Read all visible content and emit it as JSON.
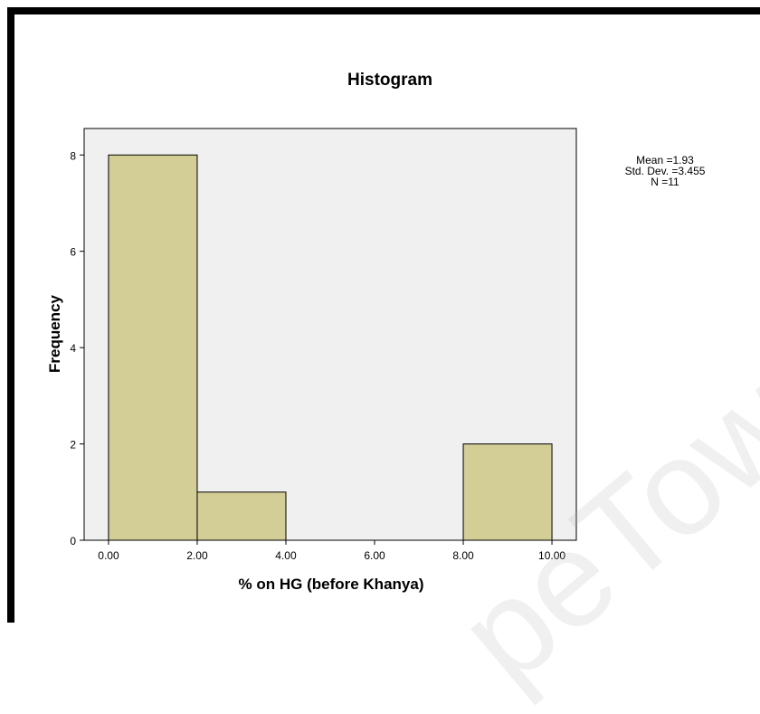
{
  "chart_data": {
    "type": "bar",
    "title": "Histogram",
    "xlabel": "% on HG (before Khanya)",
    "ylabel": "Frequency",
    "bins": [
      {
        "start": 0.0,
        "end": 2.0,
        "count": 8
      },
      {
        "start": 2.0,
        "end": 4.0,
        "count": 1
      },
      {
        "start": 4.0,
        "end": 6.0,
        "count": 0
      },
      {
        "start": 6.0,
        "end": 8.0,
        "count": 0
      },
      {
        "start": 8.0,
        "end": 10.0,
        "count": 2
      }
    ],
    "xticks": [
      "0.00",
      "2.00",
      "4.00",
      "6.00",
      "8.00",
      "10.00"
    ],
    "yticks": [
      "0",
      "2",
      "4",
      "6",
      "8"
    ],
    "xlim": [
      -0.55,
      10.55
    ],
    "ylim": [
      0,
      8.55
    ],
    "stats": [
      "Mean =1.93",
      "Std. Dev. =3.455",
      "N =11"
    ],
    "colors": {
      "bar": "#d3cd96",
      "plot_bg": "#f0f0f0",
      "edge": "#000000"
    },
    "grid": false
  },
  "watermark": "peTown"
}
